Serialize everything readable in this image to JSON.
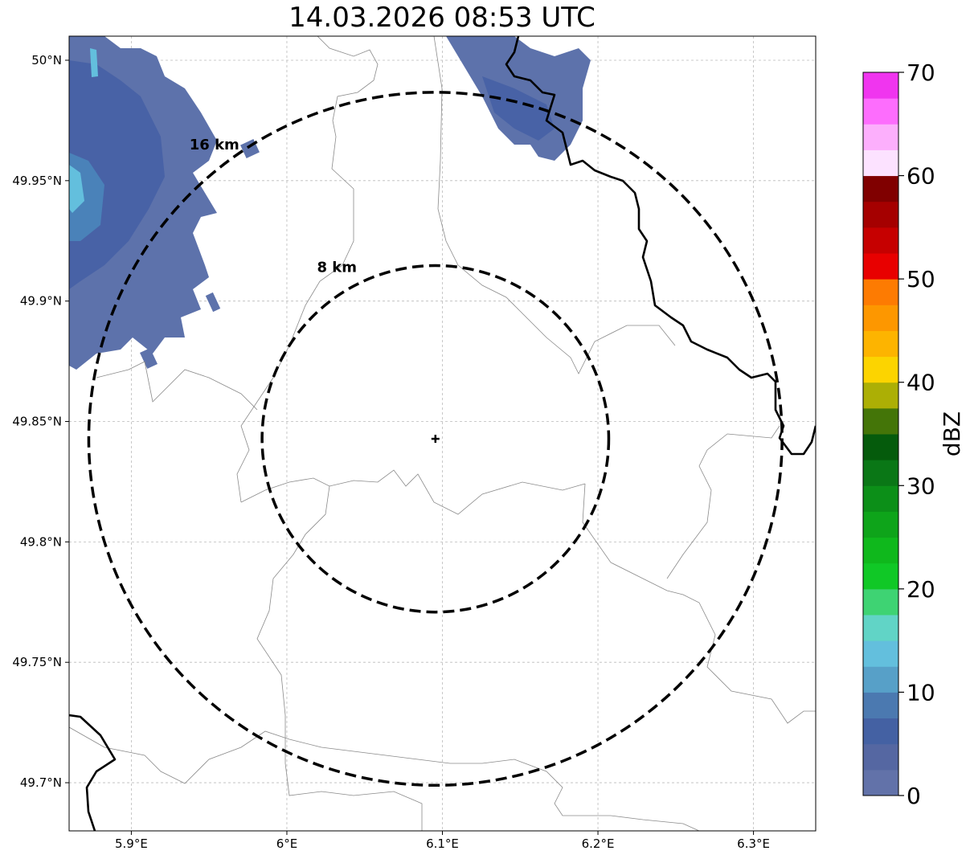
{
  "title": "14.03.2026 08:53 UTC",
  "map": {
    "lon_range": [
      5.86,
      6.34
    ],
    "lat_range": [
      49.68,
      50.01
    ],
    "radar_site": {
      "lon": 6.0955,
      "lat": 49.8428
    },
    "lon_ticks": [
      {
        "value": 5.9,
        "label": "5.9°E"
      },
      {
        "value": 6.0,
        "label": "6°E"
      },
      {
        "value": 6.1,
        "label": "6.1°E"
      },
      {
        "value": 6.2,
        "label": "6.2°E"
      },
      {
        "value": 6.3,
        "label": "6.3°E"
      }
    ],
    "lat_ticks": [
      {
        "value": 50.0,
        "label": "50°N"
      },
      {
        "value": 49.95,
        "label": "49.95°N"
      },
      {
        "value": 49.9,
        "label": "49.9°N"
      },
      {
        "value": 49.85,
        "label": "49.85°N"
      },
      {
        "value": 49.8,
        "label": "49.8°N"
      },
      {
        "value": 49.75,
        "label": "49.75°N"
      },
      {
        "value": 49.7,
        "label": "49.7°N"
      }
    ],
    "range_rings": [
      {
        "radius_km": 8,
        "label": "8 km"
      },
      {
        "radius_km": 16,
        "label": "16 km"
      }
    ]
  },
  "colorbar": {
    "label": "dBZ",
    "min": 0,
    "max": 70,
    "step": 2.5,
    "ticks": [
      0,
      10,
      20,
      30,
      40,
      50,
      60,
      70
    ],
    "colors": [
      "#6272a9",
      "#5567a2",
      "#4461a3",
      "#4b79b0",
      "#57a0c8",
      "#63bfdd",
      "#61d4c6",
      "#3ed373",
      "#10c826",
      "#0fb81c",
      "#0ea41a",
      "#0c8f18",
      "#0a7716",
      "#055b0c",
      "#447508",
      "#acaf05",
      "#fcd400",
      "#fdb400",
      "#fd9700",
      "#fd7b02",
      "#e80000",
      "#c60000",
      "#a50000",
      "#800000",
      "#fce2ff",
      "#fcaffc",
      "#fd6dfd",
      "#f035ef"
    ]
  }
}
